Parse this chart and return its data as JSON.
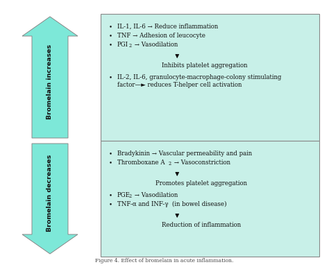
{
  "bg_color": "#ffffff",
  "box_color": "#c8f0e8",
  "box_edge_color": "#888888",
  "arrow_fill_color": "#7de8d8",
  "arrow_edge_color": "#888888",
  "text_color": "#111111",
  "caption": "Figure 4. Effect of bromelain in acute inflammation.",
  "top_label": "Bromelain increases",
  "bottom_label": "Bromelain decreases",
  "figsize": [
    4.74,
    3.85
  ],
  "dpi": 100
}
